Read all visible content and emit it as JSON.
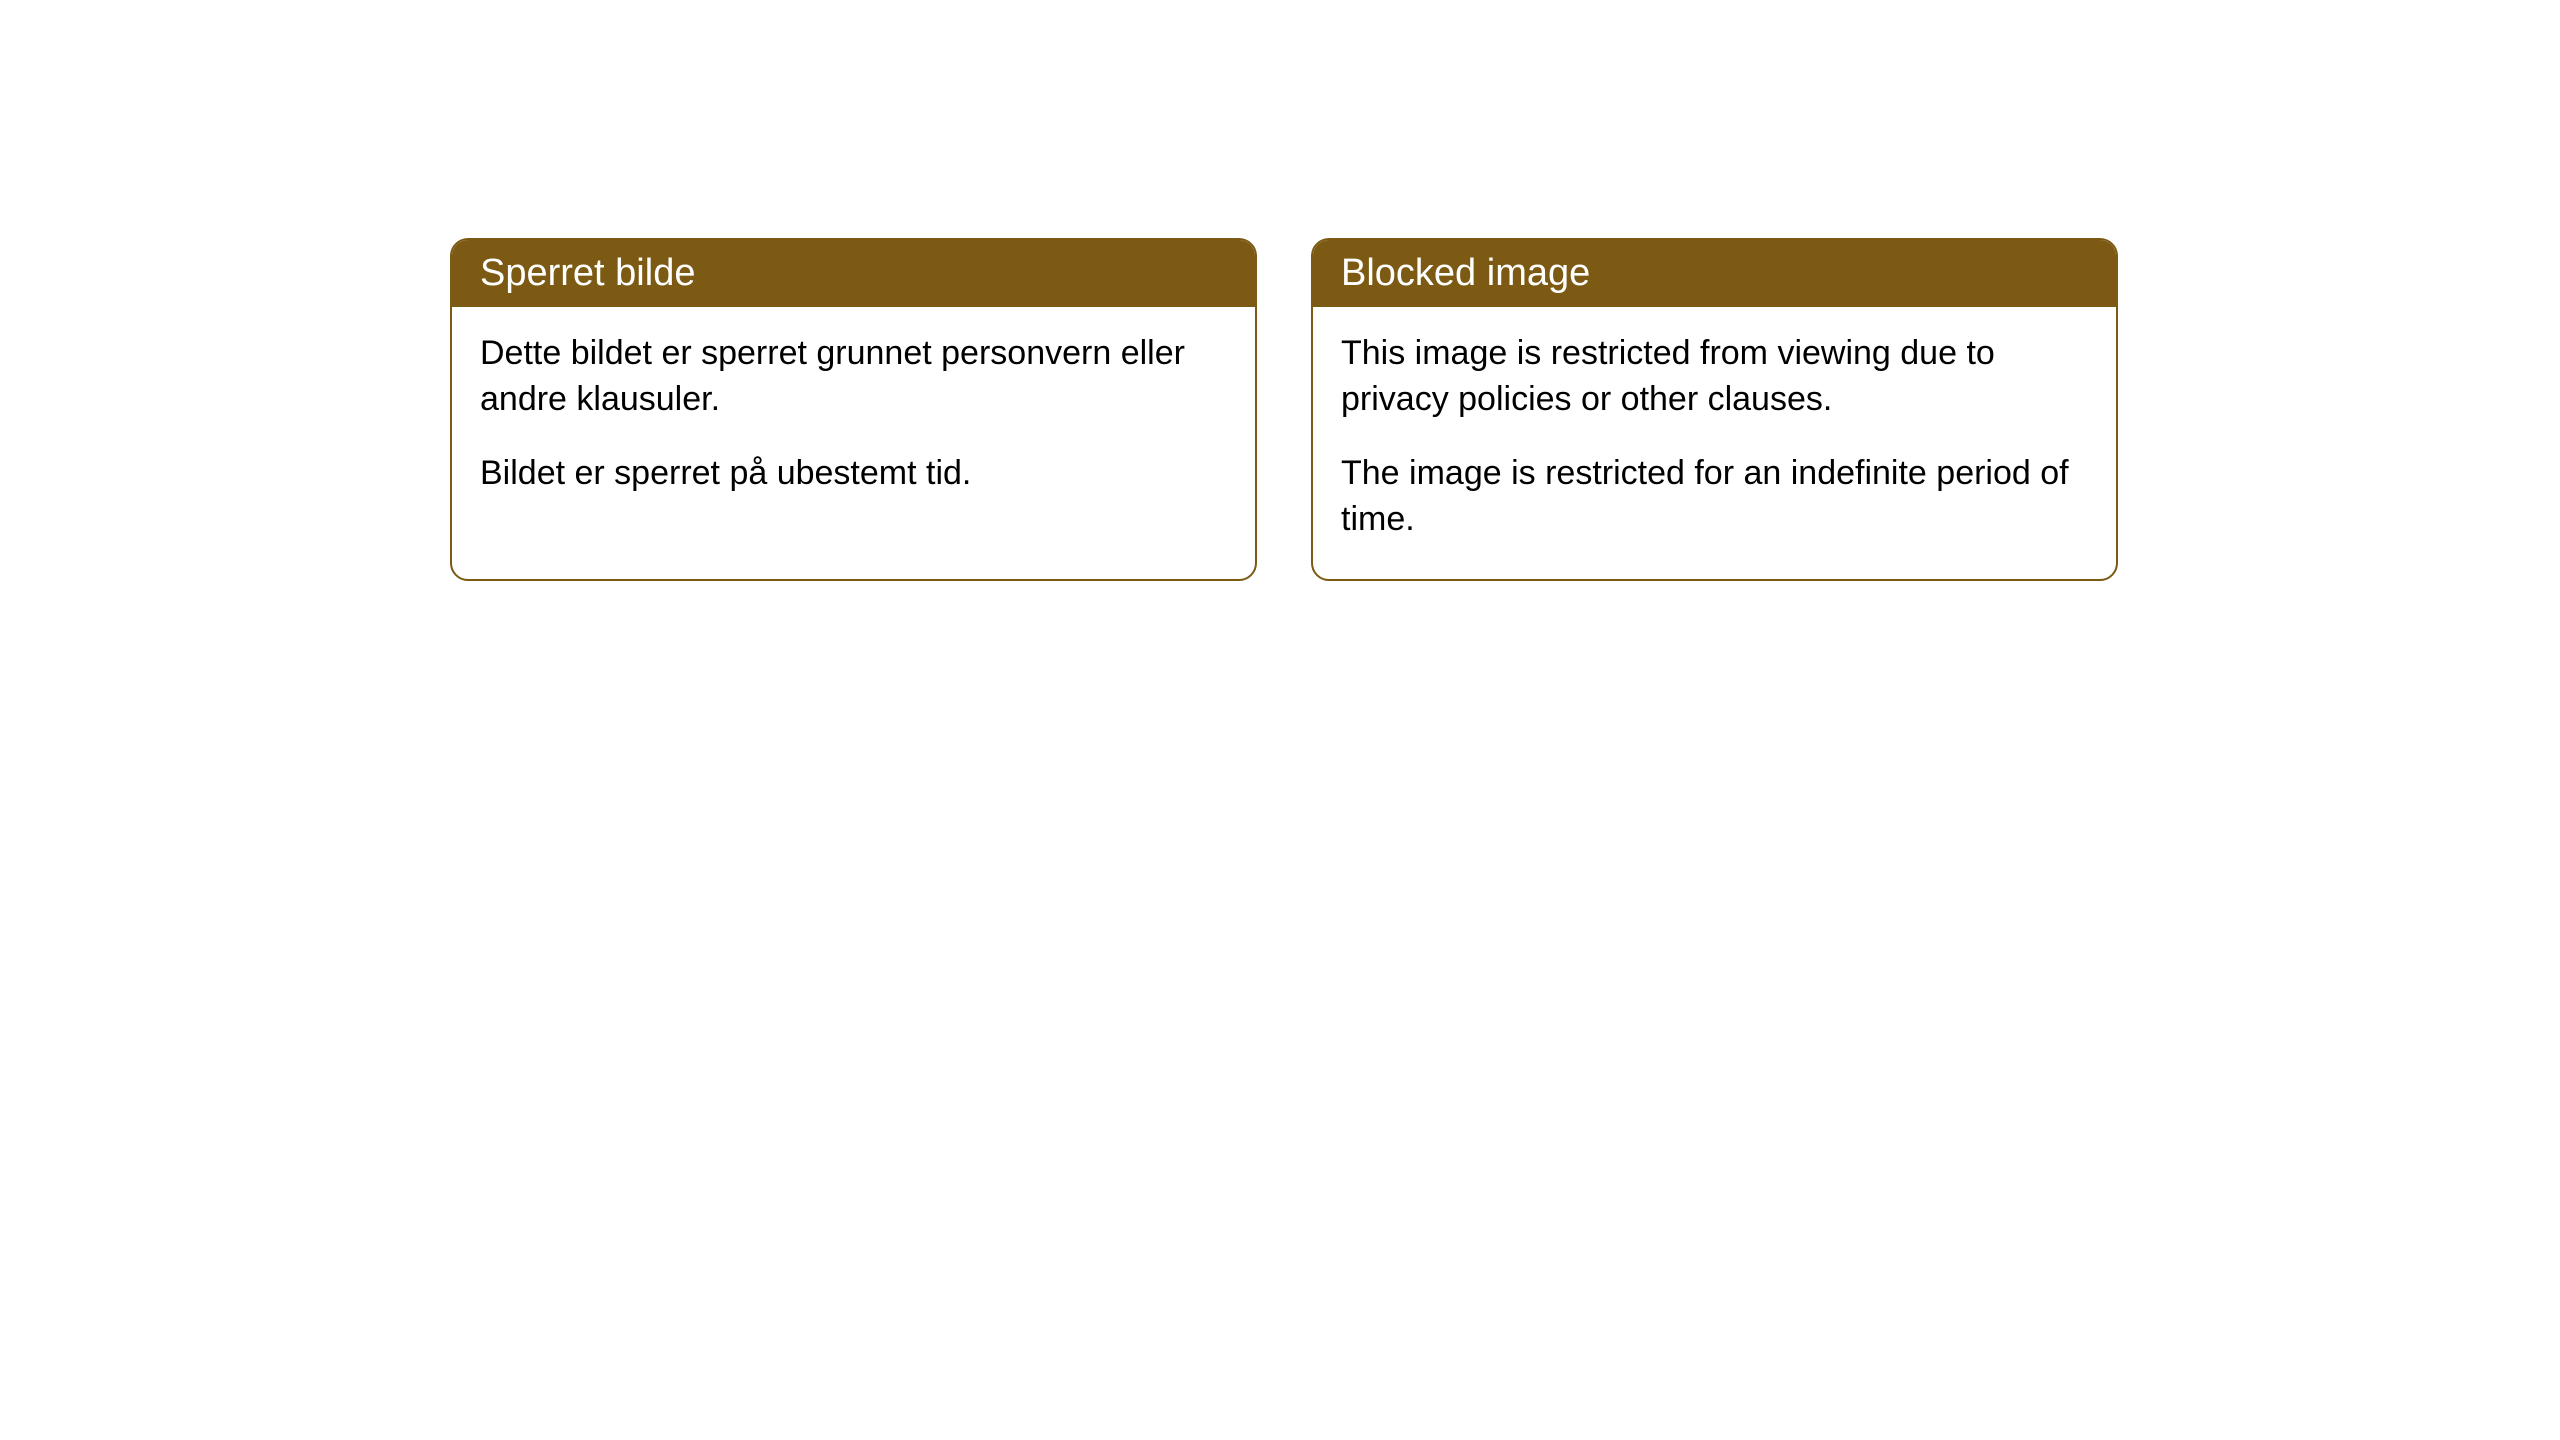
{
  "cards": [
    {
      "title": "Sperret bilde",
      "paragraph1": "Dette bildet er sperret grunnet personvern eller andre klausuler.",
      "paragraph2": "Bildet er sperret på ubestemt tid."
    },
    {
      "title": "Blocked image",
      "paragraph1": "This image is restricted from viewing due to privacy policies or other clauses.",
      "paragraph2": "The image is restricted for an indefinite period of time."
    }
  ],
  "style": {
    "header_background": "#7c5a14",
    "header_color": "#ffffff",
    "border_color": "#7c5a14",
    "card_background": "#ffffff",
    "body_text_color": "#000000",
    "border_radius": 18,
    "header_fontsize": 38,
    "body_fontsize": 34
  }
}
